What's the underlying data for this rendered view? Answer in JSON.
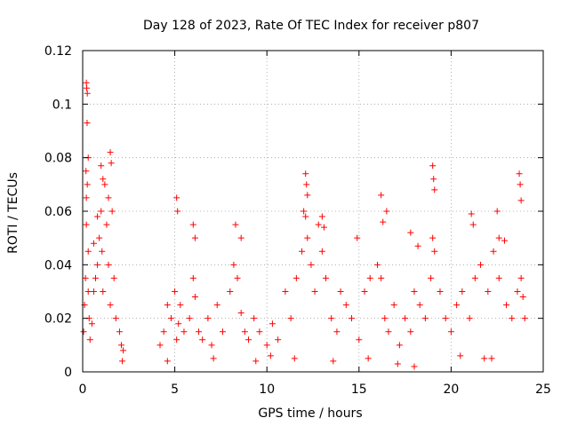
{
  "chart_data": {
    "type": "scatter",
    "title": "Day 128 of 2023, Rate Of TEC Index for receiver p807",
    "xlabel": "GPS time / hours",
    "ylabel": "ROTI / TECUs",
    "xlim": [
      0,
      25
    ],
    "ylim": [
      0,
      0.12
    ],
    "x_ticks": [
      0,
      5,
      10,
      15,
      20,
      25
    ],
    "x_tick_labels": [
      "0",
      "5",
      "10",
      "15",
      "20",
      "25"
    ],
    "y_ticks": [
      0,
      0.02,
      0.04,
      0.06,
      0.08,
      0.1,
      0.12
    ],
    "y_tick_labels": [
      "0",
      "0.02",
      "0.04",
      "0.06",
      "0.08",
      "0.1",
      "0.12"
    ],
    "grid": true,
    "marker": "+",
    "series": [
      {
        "name": "ROTI",
        "color": "#ff0000",
        "x": [
          0.05,
          0.1,
          0.15,
          0.2,
          0.2,
          0.25,
          0.3,
          0.3,
          0.35,
          0.4,
          0.5,
          0.6,
          0.7,
          0.8,
          0.9,
          1.0,
          1.05,
          1.1,
          1.2,
          1.3,
          1.4,
          1.5,
          1.6,
          1.7,
          1.8,
          2.0,
          2.2,
          0.2,
          0.22,
          0.25,
          0.24,
          0.3,
          0.18,
          1.0,
          1.1,
          1.5,
          1.55,
          1.4,
          0.6,
          0.8,
          2.1,
          2.15,
          4.2,
          4.4,
          4.6,
          4.8,
          5.0,
          5.1,
          5.2,
          5.3,
          5.5,
          5.8,
          6.0,
          6.1,
          6.3,
          6.5,
          6.8,
          7.0,
          7.3,
          7.6,
          8.0,
          8.2,
          8.4,
          8.6,
          8.8,
          9.0,
          9.3,
          9.6,
          10.0,
          10.3,
          10.6,
          11.0,
          11.3,
          11.6,
          11.9,
          12.0,
          12.1,
          12.2,
          12.4,
          12.6,
          12.8,
          13.0,
          13.2,
          13.5,
          13.8,
          14.0,
          14.3,
          14.6,
          15.0,
          15.3,
          15.6,
          16.0,
          16.2,
          16.4,
          16.6,
          16.9,
          17.2,
          17.5,
          17.8,
          18.0,
          18.3,
          18.6,
          18.9,
          19.0,
          19.1,
          19.4,
          19.7,
          20.0,
          20.3,
          20.6,
          21.0,
          21.3,
          21.6,
          22.0,
          22.3,
          22.6,
          23.0,
          23.3,
          23.6,
          23.8,
          23.9,
          24.0,
          5.1,
          5.15,
          6.0,
          6.1,
          8.3,
          8.6,
          12.1,
          12.15,
          12.2,
          13.0,
          13.1,
          14.9,
          16.2,
          16.3,
          16.5,
          17.8,
          18.2,
          19.0,
          19.05,
          19.1,
          21.1,
          21.2,
          22.5,
          22.6,
          22.9,
          23.7,
          23.75,
          23.8,
          4.6,
          7.1,
          9.4,
          10.2,
          11.5,
          13.6,
          15.5,
          17.1,
          18.0,
          20.5,
          21.8,
          22.2
        ],
        "y": [
          0.015,
          0.025,
          0.035,
          0.055,
          0.065,
          0.07,
          0.045,
          0.03,
          0.02,
          0.012,
          0.018,
          0.03,
          0.035,
          0.04,
          0.05,
          0.06,
          0.045,
          0.03,
          0.07,
          0.055,
          0.04,
          0.025,
          0.06,
          0.035,
          0.02,
          0.015,
          0.008,
          0.108,
          0.106,
          0.104,
          0.093,
          0.08,
          0.075,
          0.077,
          0.072,
          0.082,
          0.078,
          0.065,
          0.048,
          0.058,
          0.01,
          0.004,
          0.01,
          0.015,
          0.025,
          0.02,
          0.03,
          0.012,
          0.018,
          0.025,
          0.015,
          0.02,
          0.035,
          0.028,
          0.015,
          0.012,
          0.02,
          0.01,
          0.025,
          0.015,
          0.03,
          0.04,
          0.035,
          0.022,
          0.015,
          0.012,
          0.02,
          0.015,
          0.01,
          0.018,
          0.012,
          0.03,
          0.02,
          0.035,
          0.045,
          0.06,
          0.058,
          0.05,
          0.04,
          0.03,
          0.055,
          0.045,
          0.035,
          0.02,
          0.015,
          0.03,
          0.025,
          0.02,
          0.012,
          0.03,
          0.035,
          0.04,
          0.035,
          0.02,
          0.015,
          0.025,
          0.01,
          0.02,
          0.015,
          0.03,
          0.025,
          0.02,
          0.035,
          0.05,
          0.045,
          0.03,
          0.02,
          0.015,
          0.025,
          0.03,
          0.02,
          0.035,
          0.04,
          0.03,
          0.045,
          0.035,
          0.025,
          0.02,
          0.03,
          0.035,
          0.028,
          0.02,
          0.065,
          0.06,
          0.055,
          0.05,
          0.055,
          0.05,
          0.074,
          0.07,
          0.066,
          0.058,
          0.054,
          0.05,
          0.066,
          0.056,
          0.06,
          0.052,
          0.047,
          0.077,
          0.072,
          0.068,
          0.059,
          0.055,
          0.06,
          0.05,
          0.049,
          0.074,
          0.07,
          0.064,
          0.004,
          0.005,
          0.004,
          0.006,
          0.005,
          0.004,
          0.005,
          0.003,
          0.002,
          0.006,
          0.005,
          0.005
        ]
      }
    ]
  }
}
